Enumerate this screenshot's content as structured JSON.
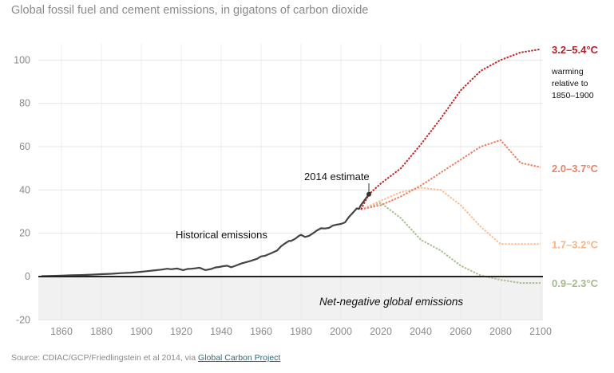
{
  "title": "Global fossil fuel and cement emissions, in gigatons of carbon dioxide",
  "source": {
    "prefix": "Source: CDIAC/GCP/Friedlingstein et al 2014, via ",
    "link_text": "Global Carbon Project"
  },
  "chart_data": {
    "type": "line",
    "title": "Global fossil fuel and cement emissions, in gigatons of carbon dioxide",
    "xlabel": "",
    "ylabel": "",
    "xlim": [
      1850,
      2100
    ],
    "ylim": [
      -20,
      105
    ],
    "grid": true,
    "x_ticks": [
      1860,
      1880,
      1900,
      1920,
      1940,
      1960,
      1980,
      2000,
      2020,
      2040,
      2060,
      2080,
      2100
    ],
    "y_ticks": [
      100,
      80,
      60,
      40,
      20,
      0,
      -20
    ],
    "negative_region": {
      "from": -20,
      "to": 0,
      "label": "Net-negative global emissions",
      "color": "#f0f1f0"
    },
    "annotations": {
      "historical_label": "Historical emissions",
      "estimate_label": "2014 estimate",
      "estimate_point": {
        "x": 2014,
        "y": 38
      },
      "warming_note": [
        "warming",
        "relative to",
        "1850–1900"
      ]
    },
    "series": [
      {
        "name": "Historical emissions",
        "style": "solid",
        "color": "#444444",
        "x": [
          1850,
          1855,
          1860,
          1865,
          1870,
          1875,
          1880,
          1885,
          1890,
          1895,
          1900,
          1903,
          1906,
          1910,
          1913,
          1915,
          1918,
          1920,
          1921,
          1923,
          1925,
          1927,
          1929,
          1930,
          1932,
          1935,
          1937,
          1939,
          1941,
          1943,
          1945,
          1946,
          1948,
          1950,
          1952,
          1955,
          1958,
          1960,
          1962,
          1965,
          1968,
          1970,
          1972,
          1974,
          1975,
          1977,
          1979,
          1980,
          1982,
          1984,
          1986,
          1988,
          1990,
          1992,
          1994,
          1996,
          1998,
          2000,
          2002,
          2004,
          2006,
          2008,
          2009,
          2010,
          2012,
          2014
        ],
        "y": [
          0.2,
          0.3,
          0.4,
          0.6,
          0.7,
          0.9,
          1.1,
          1.3,
          1.6,
          1.8,
          2.2,
          2.5,
          2.8,
          3.2,
          3.6,
          3.4,
          3.7,
          3.2,
          3.0,
          3.5,
          3.6,
          3.8,
          4.1,
          3.8,
          3.0,
          3.5,
          4.2,
          4.4,
          4.8,
          5.0,
          4.3,
          4.6,
          5.3,
          6.0,
          6.5,
          7.3,
          8.2,
          9.3,
          9.6,
          10.8,
          12.0,
          14.0,
          15.3,
          16.5,
          16.4,
          17.4,
          18.8,
          19.3,
          18.3,
          18.8,
          20.0,
          21.3,
          22.3,
          22.2,
          22.5,
          23.6,
          24.0,
          24.3,
          25.0,
          27.5,
          29.5,
          31.5,
          31.2,
          33.0,
          35.5,
          38.0
        ]
      },
      {
        "name": "3.2–5.4°C",
        "style": "dotted",
        "color": "#c0282d",
        "x": [
          2010,
          2014,
          2020,
          2030,
          2040,
          2050,
          2060,
          2070,
          2080,
          2090,
          2100
        ],
        "y": [
          31,
          38,
          43,
          50,
          61,
          73,
          86,
          95,
          100,
          103.5,
          105
        ]
      },
      {
        "name": "2.0–3.7°C",
        "style": "dotted",
        "color": "#e8836a",
        "x": [
          2010,
          2020,
          2030,
          2040,
          2050,
          2060,
          2070,
          2080,
          2090,
          2100
        ],
        "y": [
          31,
          33,
          37,
          42,
          48,
          54,
          60,
          63,
          52.5,
          50.5
        ]
      },
      {
        "name": "1.7–3.2°C",
        "style": "dotted",
        "color": "#fbbf94",
        "x": [
          2010,
          2020,
          2030,
          2040,
          2050,
          2060,
          2070,
          2080,
          2090,
          2100
        ],
        "y": [
          31,
          35,
          39,
          41,
          40,
          33,
          23,
          15,
          15,
          15
        ]
      },
      {
        "name": "0.9–2.3°C",
        "style": "dotted",
        "color": "#a9c194",
        "x": [
          2010,
          2020,
          2030,
          2040,
          2050,
          2060,
          2070,
          2080,
          2090,
          2100
        ],
        "y": [
          31,
          34,
          27,
          17,
          12,
          5,
          0.5,
          -1.5,
          -3,
          -3
        ]
      }
    ],
    "end_labels": [
      {
        "series": "3.2–5.4°C",
        "text": "3.2–5.4°C",
        "color": "#b5202a",
        "y": 105
      },
      {
        "series": "2.0–3.7°C",
        "text": "2.0–3.7°C",
        "color": "#e8836a",
        "y": 50
      },
      {
        "series": "1.7–3.2°C",
        "text": "1.7–3.2°C",
        "color": "#fbb383",
        "y": 15
      },
      {
        "series": "0.9–2.3°C",
        "text": "0.9–2.3°C",
        "color": "#a3bb8c",
        "y": -3
      }
    ]
  }
}
